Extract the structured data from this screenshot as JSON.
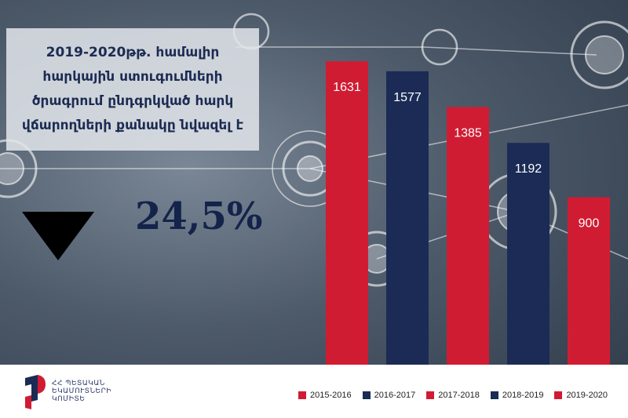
{
  "title": "2019-2020թթ. համալիր հարկային ստուգումների ծրագրում ընդգրկված հարկ վճարողների քանակը նվազել է",
  "change": {
    "value": "24,5%",
    "direction": "down"
  },
  "logo_text": "ՀՀ ՊԵՏԱԿԱՆ ԵԿԱՄՈՒՏՆԵՐԻ ԿՈՄԻՏԵ",
  "colors": {
    "red": "#d01c32",
    "navy": "#1b2b55"
  },
  "chart_data": {
    "type": "bar",
    "categories": [
      "2015-2016",
      "2016-2017",
      "2017-2018",
      "2018-2019",
      "2019-2020"
    ],
    "values": [
      1631,
      1577,
      1385,
      1192,
      900
    ],
    "bar_colors": [
      "#d01c32",
      "#1b2b55",
      "#d01c32",
      "#1b2b55",
      "#d01c32"
    ],
    "ylim": [
      0,
      1800
    ],
    "grid": false,
    "legend": "bottom",
    "data_labels": true
  }
}
